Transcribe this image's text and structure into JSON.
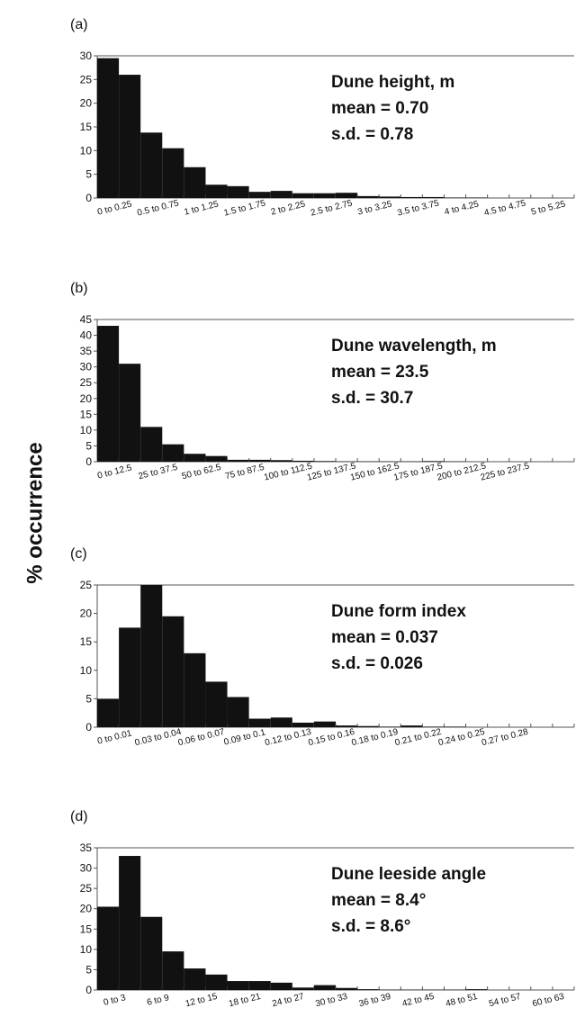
{
  "y_label": "% occurrence",
  "chart_data": [
    {
      "type": "bar",
      "panel": "(a)",
      "annotations": [
        "Dune height, m",
        "mean = 0.70",
        "s.d. = 0.78"
      ],
      "color": "#111111",
      "categories": [
        "0 to 0.25",
        null,
        "0.5 to 0.75",
        null,
        "1 to 1.25",
        null,
        "1.5 to 1.75",
        null,
        "2 to 2.25",
        null,
        "2.5 to 2.75",
        null,
        "3 to 3.25",
        null,
        "3.5 to 3.75",
        null,
        "4 to 4.25",
        null,
        "4.5 to 4.75",
        null,
        "5 to 5.25",
        null
      ],
      "values": [
        29.5,
        26,
        13.8,
        10.5,
        6.5,
        2.8,
        2.5,
        1.3,
        1.5,
        1,
        1,
        1.1,
        0.4,
        0.3,
        0.2,
        0.2,
        0.1,
        0.1,
        0,
        0,
        0,
        0
      ],
      "ylim": [
        0,
        30
      ],
      "yticks": [
        0,
        5,
        10,
        15,
        20,
        25,
        30
      ]
    },
    {
      "type": "bar",
      "panel": "(b)",
      "annotations": [
        "Dune wavelength, m",
        "mean = 23.5",
        "s.d. = 30.7"
      ],
      "color": "#111111",
      "categories": [
        "0 to 12.5",
        null,
        "25 to 37.5",
        null,
        "50 to 62.5",
        null,
        "75 to 87.5",
        null,
        "100 to 112.5",
        null,
        "125 to 137.5",
        null,
        "150 to 162.5",
        null,
        "175 to 187.5",
        null,
        "200 to 212.5",
        null,
        "225 to 237.5",
        null,
        null,
        null
      ],
      "values": [
        43,
        31,
        11,
        5.5,
        2.5,
        1.8,
        0.6,
        0.6,
        0.5,
        0.3,
        0.2,
        0.1,
        0.1,
        0.1,
        0.1,
        0.2,
        0.1,
        0,
        0,
        0,
        0,
        0
      ],
      "ylim": [
        0,
        45
      ],
      "yticks": [
        0,
        5,
        10,
        15,
        20,
        25,
        30,
        35,
        40,
        45
      ]
    },
    {
      "type": "bar",
      "panel": "(c)",
      "annotations": [
        "Dune form index",
        "mean = 0.037",
        "s.d. = 0.026"
      ],
      "color": "#111111",
      "categories": [
        "0 to 0.01",
        null,
        "0.03 to 0.04",
        null,
        "0.06 to 0.07",
        null,
        "0.09 to 0.1",
        null,
        "0.12 to 0.13",
        null,
        "0.15 to 0.16",
        null,
        "0.18 to 0.19",
        null,
        "0.21 to 0.22",
        null,
        "0.24 to 0.25",
        null,
        "0.27 to 0.28",
        null,
        null,
        null
      ],
      "values": [
        5,
        17.5,
        25,
        19.5,
        13,
        8,
        5.3,
        1.5,
        1.7,
        0.8,
        1,
        0.3,
        0.2,
        0.1,
        0.3,
        0.1,
        0.1,
        0,
        0,
        0,
        0,
        0
      ],
      "ylim": [
        0,
        25
      ],
      "yticks": [
        0,
        5,
        10,
        15,
        20,
        25
      ]
    },
    {
      "type": "bar",
      "panel": "(d)",
      "annotations": [
        "Dune leeside angle",
        "mean = 8.4°",
        "s.d. = 8.6°"
      ],
      "color": "#111111",
      "categories": [
        "0 to 3",
        null,
        "6 to 9",
        null,
        "12 to 15",
        null,
        "18 to 21",
        null,
        "24 to 27",
        null,
        "30 to 33",
        null,
        "36 to 39",
        null,
        "42 to 45",
        null,
        "48 to 51",
        null,
        "54 to 57",
        null,
        "60 to 63",
        null
      ],
      "values": [
        20.5,
        33,
        18,
        9.5,
        5.3,
        3.8,
        2.2,
        2.2,
        1.8,
        0.6,
        1.2,
        0.5,
        0.2,
        0.1,
        0.1,
        0.1,
        0.1,
        0.2,
        0,
        0,
        0,
        0
      ],
      "ylim": [
        0,
        35
      ],
      "yticks": [
        0,
        5,
        10,
        15,
        20,
        25,
        30,
        35
      ]
    }
  ]
}
